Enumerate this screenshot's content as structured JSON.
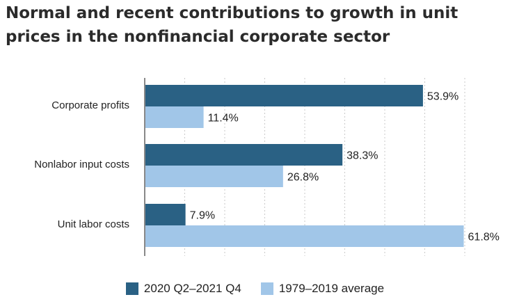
{
  "title": "Normal and recent contributions to growth in unit prices in the nonfinancial corporate sector",
  "colors": {
    "recent": "#2a6184",
    "average": "#a1c6e8",
    "grid": "#c9c9c9",
    "axis": "#888888"
  },
  "legend": {
    "recent_label": "2020 Q2–2021 Q4",
    "average_label": "1979–2019 average"
  },
  "chart_data": {
    "type": "bar",
    "orientation": "horizontal",
    "title": "Normal and recent contributions to growth in unit prices in the nonfinancial corporate sector",
    "categories": [
      "Corporate profits",
      "Nonlabor input costs",
      "Unit labor costs"
    ],
    "series": [
      {
        "name": "2020 Q2–2021 Q4",
        "values": [
          53.9,
          38.3,
          7.9
        ],
        "labels": [
          "53.9%",
          "38.3%",
          "7.9%"
        ]
      },
      {
        "name": "1979–2019 average",
        "values": [
          11.4,
          26.8,
          61.8
        ],
        "labels": [
          "11.4%",
          "26.8%",
          "61.8%"
        ]
      }
    ],
    "xlim": [
      0,
      62
    ],
    "grid": true,
    "legend_position": "bottom"
  }
}
